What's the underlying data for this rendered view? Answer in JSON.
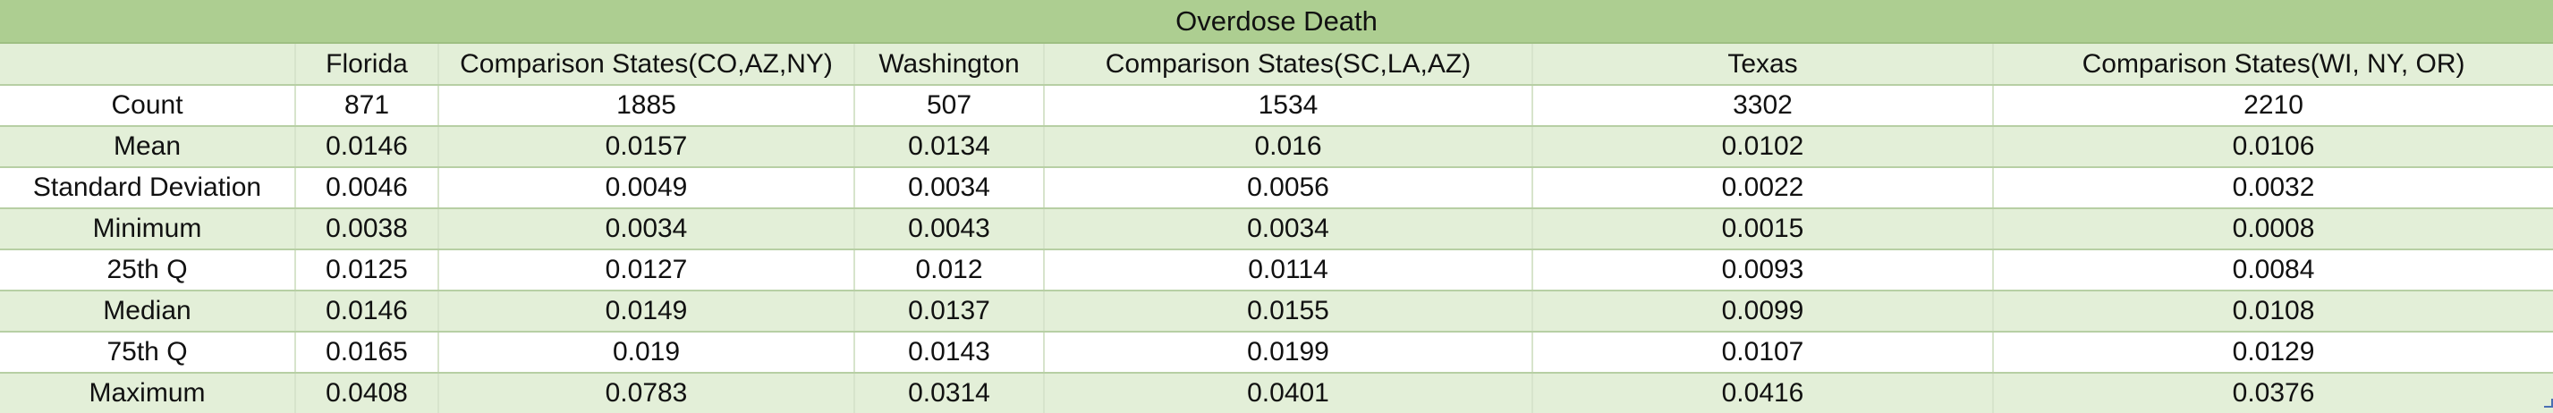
{
  "table": {
    "title": "Overdose Death",
    "columns": [
      "",
      "Florida",
      "Comparison States(CO,AZ,NY)",
      "Washington",
      "Comparison States(SC,LA,AZ)",
      "Texas",
      "Comparison States(WI, NY, OR)"
    ],
    "rows": [
      [
        "Count",
        "871",
        "1885",
        "507",
        "1534",
        "3302",
        "2210"
      ],
      [
        "Mean",
        "0.0146",
        "0.0157",
        "0.0134",
        "0.016",
        "0.0102",
        "0.0106"
      ],
      [
        "Standard Deviation",
        "0.0046",
        "0.0049",
        "0.0034",
        "0.0056",
        "0.0022",
        "0.0032"
      ],
      [
        "Minimum",
        "0.0038",
        "0.0034",
        "0.0043",
        "0.0034",
        "0.0015",
        "0.0008"
      ],
      [
        "25th Q",
        "0.0125",
        "0.0127",
        "0.012",
        "0.0114",
        "0.0093",
        "0.0084"
      ],
      [
        "Median",
        "0.0146",
        "0.0149",
        "0.0137",
        "0.0155",
        "0.0099",
        "0.0108"
      ],
      [
        "75th Q",
        "0.0165",
        "0.019",
        "0.0143",
        "0.0199",
        "0.0107",
        "0.0129"
      ],
      [
        "Maximum",
        "0.0408",
        "0.0783",
        "0.0314",
        "0.0401",
        "0.0416",
        "0.0376"
      ]
    ]
  },
  "colors": {
    "title_band": "#adce91",
    "row_band": "#e3efd8",
    "row_plain": "#ffffff",
    "grid_line": "#b7cfa4"
  }
}
